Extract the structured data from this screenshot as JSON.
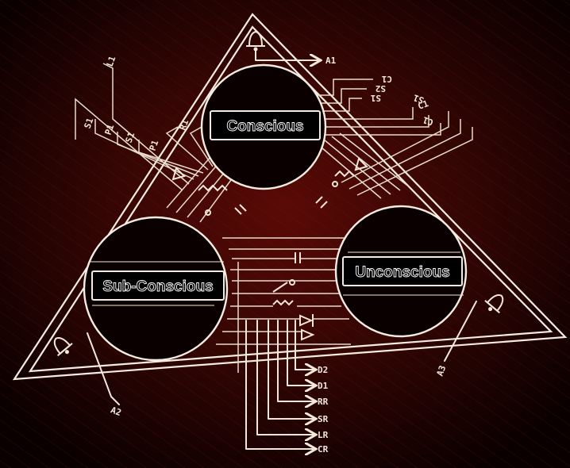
{
  "diagram": {
    "nodes": {
      "conscious": "Conscious",
      "subconscious": "Sub-Conscious",
      "unconscious": "Unconscious"
    },
    "terminals": {
      "top": [
        "A1",
        "C1",
        "S2",
        "S1"
      ],
      "left": [
        "L1",
        "S1",
        "P1",
        "S1",
        "P1",
        "R1"
      ],
      "upper_right": [
        "C1",
        "S1",
        "C1"
      ],
      "bottom": [
        "D2",
        "D1",
        "RR",
        "SR",
        "LR",
        "CR"
      ],
      "lower_left": "A2",
      "lower_right": "A3"
    },
    "icons": [
      "bell-icon",
      "bell-icon",
      "bell-icon"
    ]
  }
}
